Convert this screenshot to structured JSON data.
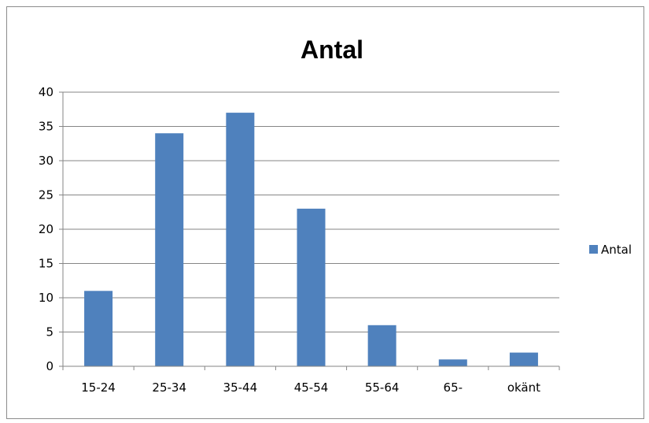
{
  "chart_data": {
    "type": "bar",
    "title": "Antal",
    "categories": [
      "15-24",
      "25-34",
      "35-44",
      "45-54",
      "55-64",
      "65-",
      "okänt"
    ],
    "series": [
      {
        "name": "Antal",
        "values": [
          11,
          34,
          37,
          23,
          6,
          1,
          2
        ],
        "color": "#4F81BD"
      }
    ],
    "yticks": [
      0,
      5,
      10,
      15,
      20,
      25,
      30,
      35,
      40
    ],
    "ylim": [
      0,
      40
    ],
    "grid": true,
    "legend_position": "right"
  }
}
